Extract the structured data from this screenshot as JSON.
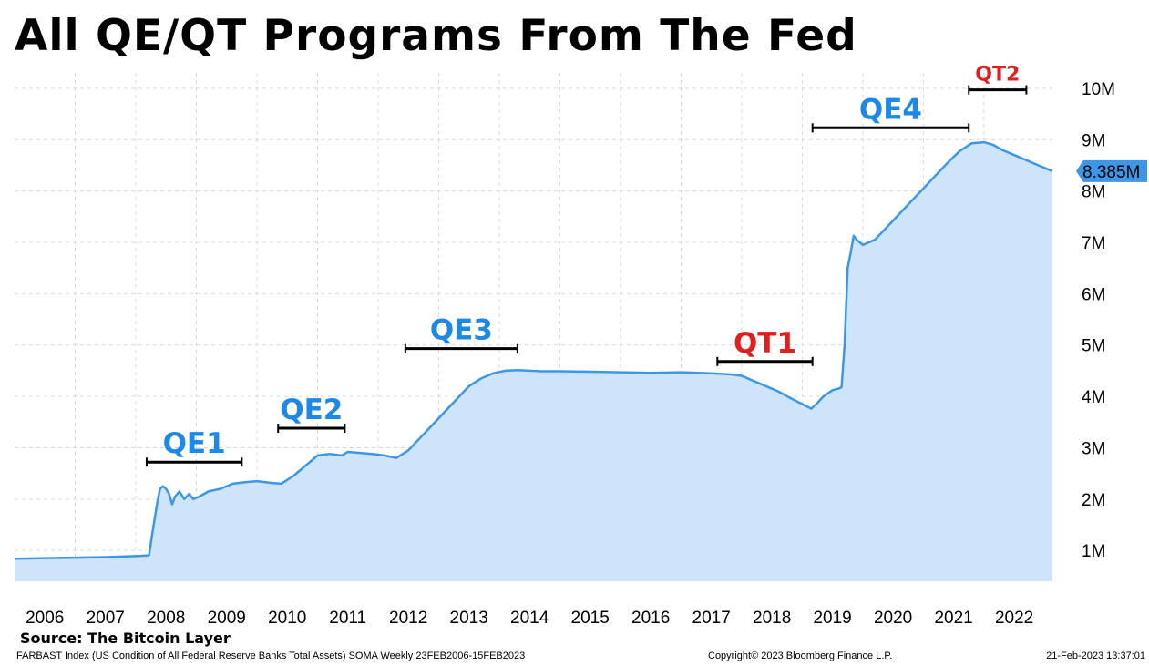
{
  "title": "All QE/QT Programs From The Fed",
  "source": "Source: The Bitcoin Layer",
  "footer": {
    "description": "FARBAST Index (US Condition of All Federal Reserve Banks Total Assets) SOMA  Weekly 23FEB2006-15FEB2023",
    "copyright": "Copyright© 2023 Bloomberg Finance L.P.",
    "timestamp": "21-Feb-2023 13:37:01"
  },
  "colors": {
    "line": "#3d97e6",
    "area": "#cde4fa",
    "qe_label": "#1e88e5",
    "qt_label": "#e02020",
    "grid": "#d9d9d9",
    "last_value_badge": "#3d97e6"
  },
  "chart_data": {
    "type": "area",
    "title": "All QE/QT Programs From The Fed",
    "xlabel": "",
    "ylabel": "",
    "x_ticks": [
      "2006",
      "2007",
      "2008",
      "2009",
      "2010",
      "2011",
      "2012",
      "2013",
      "2014",
      "2015",
      "2016",
      "2017",
      "2018",
      "2019",
      "2020",
      "2021",
      "2022"
    ],
    "y_ticks": [
      "1M",
      "2M",
      "3M",
      "4M",
      "5M",
      "6M",
      "7M",
      "8M",
      "9M",
      "10M"
    ],
    "xlim": [
      2006.0,
      2023.13
    ],
    "ylim": [
      0.4,
      10.3
    ],
    "y_axis_side": "right",
    "grid": true,
    "last_value_label": "8.385M",
    "last_value": 8.385,
    "series": [
      {
        "name": "FARBAST Index",
        "x": [
          2006.0,
          2006.5,
          2007.0,
          2007.5,
          2008.0,
          2008.18,
          2008.22,
          2008.27,
          2008.35,
          2008.4,
          2008.45,
          2008.5,
          2008.55,
          2008.6,
          2008.65,
          2008.72,
          2008.8,
          2008.88,
          2008.95,
          2009.05,
          2009.2,
          2009.4,
          2009.6,
          2009.8,
          2010.0,
          2010.2,
          2010.4,
          2010.6,
          2010.8,
          2011.0,
          2011.2,
          2011.4,
          2011.5,
          2011.7,
          2011.9,
          2012.1,
          2012.3,
          2012.5,
          2012.7,
          2012.9,
          2013.1,
          2013.3,
          2013.5,
          2013.7,
          2013.9,
          2014.1,
          2014.3,
          2014.5,
          2014.7,
          2015.0,
          2015.5,
          2016.0,
          2016.5,
          2017.0,
          2017.5,
          2017.8,
          2018.0,
          2018.2,
          2018.4,
          2018.6,
          2018.8,
          2019.0,
          2019.15,
          2019.25,
          2019.35,
          2019.5,
          2019.6,
          2019.65,
          2019.7,
          2019.75,
          2019.8,
          2019.85,
          2019.9,
          2020.0,
          2020.2,
          2020.4,
          2020.6,
          2020.8,
          2021.0,
          2021.2,
          2021.4,
          2021.6,
          2021.8,
          2022.0,
          2022.15,
          2022.3,
          2022.5,
          2022.7,
          2022.9,
          2023.13
        ],
        "values": [
          0.84,
          0.85,
          0.86,
          0.87,
          0.89,
          0.9,
          0.91,
          1.3,
          1.9,
          2.2,
          2.25,
          2.2,
          2.1,
          1.9,
          2.05,
          2.15,
          2.0,
          2.1,
          2.0,
          2.05,
          2.15,
          2.2,
          2.3,
          2.33,
          2.35,
          2.32,
          2.3,
          2.45,
          2.65,
          2.85,
          2.88,
          2.85,
          2.92,
          2.9,
          2.88,
          2.85,
          2.8,
          2.95,
          3.2,
          3.45,
          3.7,
          3.95,
          4.2,
          4.35,
          4.45,
          4.5,
          4.51,
          4.5,
          4.49,
          4.49,
          4.48,
          4.47,
          4.46,
          4.47,
          4.45,
          4.43,
          4.4,
          4.3,
          4.2,
          4.1,
          3.97,
          3.85,
          3.76,
          3.87,
          4.0,
          4.12,
          4.15,
          4.18,
          5.0,
          6.5,
          6.8,
          7.13,
          7.05,
          6.95,
          7.05,
          7.3,
          7.55,
          7.8,
          8.05,
          8.3,
          8.55,
          8.78,
          8.93,
          8.95,
          8.9,
          8.8,
          8.7,
          8.6,
          8.5,
          8.385
        ]
      }
    ],
    "annotations": [
      {
        "label": "QE1",
        "kind": "QE",
        "x_start": 2008.18,
        "x_end": 2009.75,
        "y": 2.72
      },
      {
        "label": "QE2",
        "kind": "QE",
        "x_start": 2010.35,
        "x_end": 2011.45,
        "y": 3.38
      },
      {
        "label": "QE3",
        "kind": "QE",
        "x_start": 2012.45,
        "x_end": 2014.3,
        "y": 4.93
      },
      {
        "label": "QT1",
        "kind": "QT",
        "x_start": 2017.6,
        "x_end": 2019.17,
        "y": 4.68
      },
      {
        "label": "QE4",
        "kind": "QE",
        "x_start": 2019.17,
        "x_end": 2021.75,
        "y": 9.23
      },
      {
        "label": "QT2",
        "kind": "QT",
        "x_start": 2021.75,
        "x_end": 2022.7,
        "y": 9.97
      }
    ]
  }
}
